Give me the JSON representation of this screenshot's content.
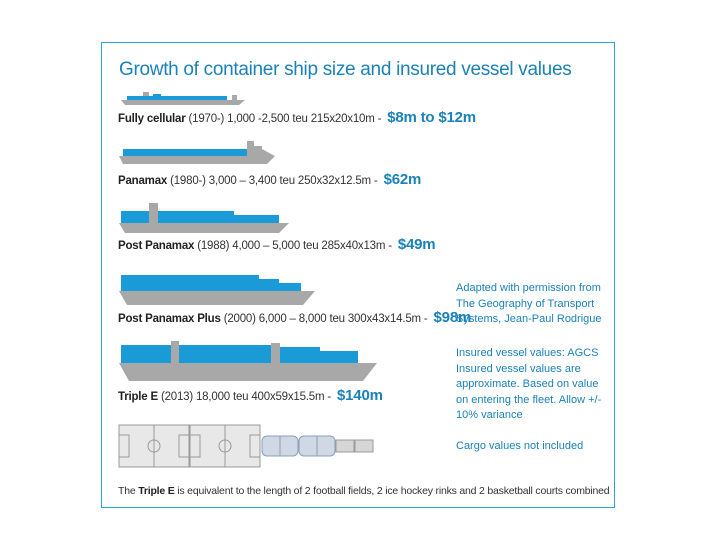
{
  "title": "Growth of container ship size and insured vessel values",
  "ships": [
    {
      "name": "Fully cellular",
      "spec": "(1970-) 1,000 -2,500 teu 215x20x10m -",
      "value": "$8m to $12m"
    },
    {
      "name": "Panamax",
      "spec": "(1980-) 3,000 – 3,400 teu 250x32x12.5m -",
      "value": "$62m"
    },
    {
      "name": "Post Panamax",
      "spec": "(1988) 4,000 – 5,000 teu 285x40x13m -",
      "value": "$49m"
    },
    {
      "name": "Post Panamax Plus",
      "spec": "(2000) 6,000 – 8,000 teu 300x43x14.5m -",
      "value": "$98m"
    },
    {
      "name": "Triple E",
      "spec": "(2013) 18,000 teu 400x59x15.5m -",
      "value": "$140m"
    }
  ],
  "notes": {
    "attribution": "Adapted with permission from The Geography of Transport Systems, Jean-Paul Rodrigue",
    "values": "Insured vessel values: AGCS Insured vessel values are approximate. Based on value on entering the fleet. Allow +/- 10% variance",
    "cargo": "Cargo values not included"
  },
  "footer": {
    "prefix": "The",
    "name": "Triple E",
    "suffix": "is equivalent to the length of 2 football fields, 2 ice hockey rinks and 2 basketball courts combined"
  },
  "colors": {
    "accent": "#1a82b8",
    "hull": "#a8a8a8",
    "cargo": "#1a9ad6",
    "border": "#2aa5d8"
  }
}
